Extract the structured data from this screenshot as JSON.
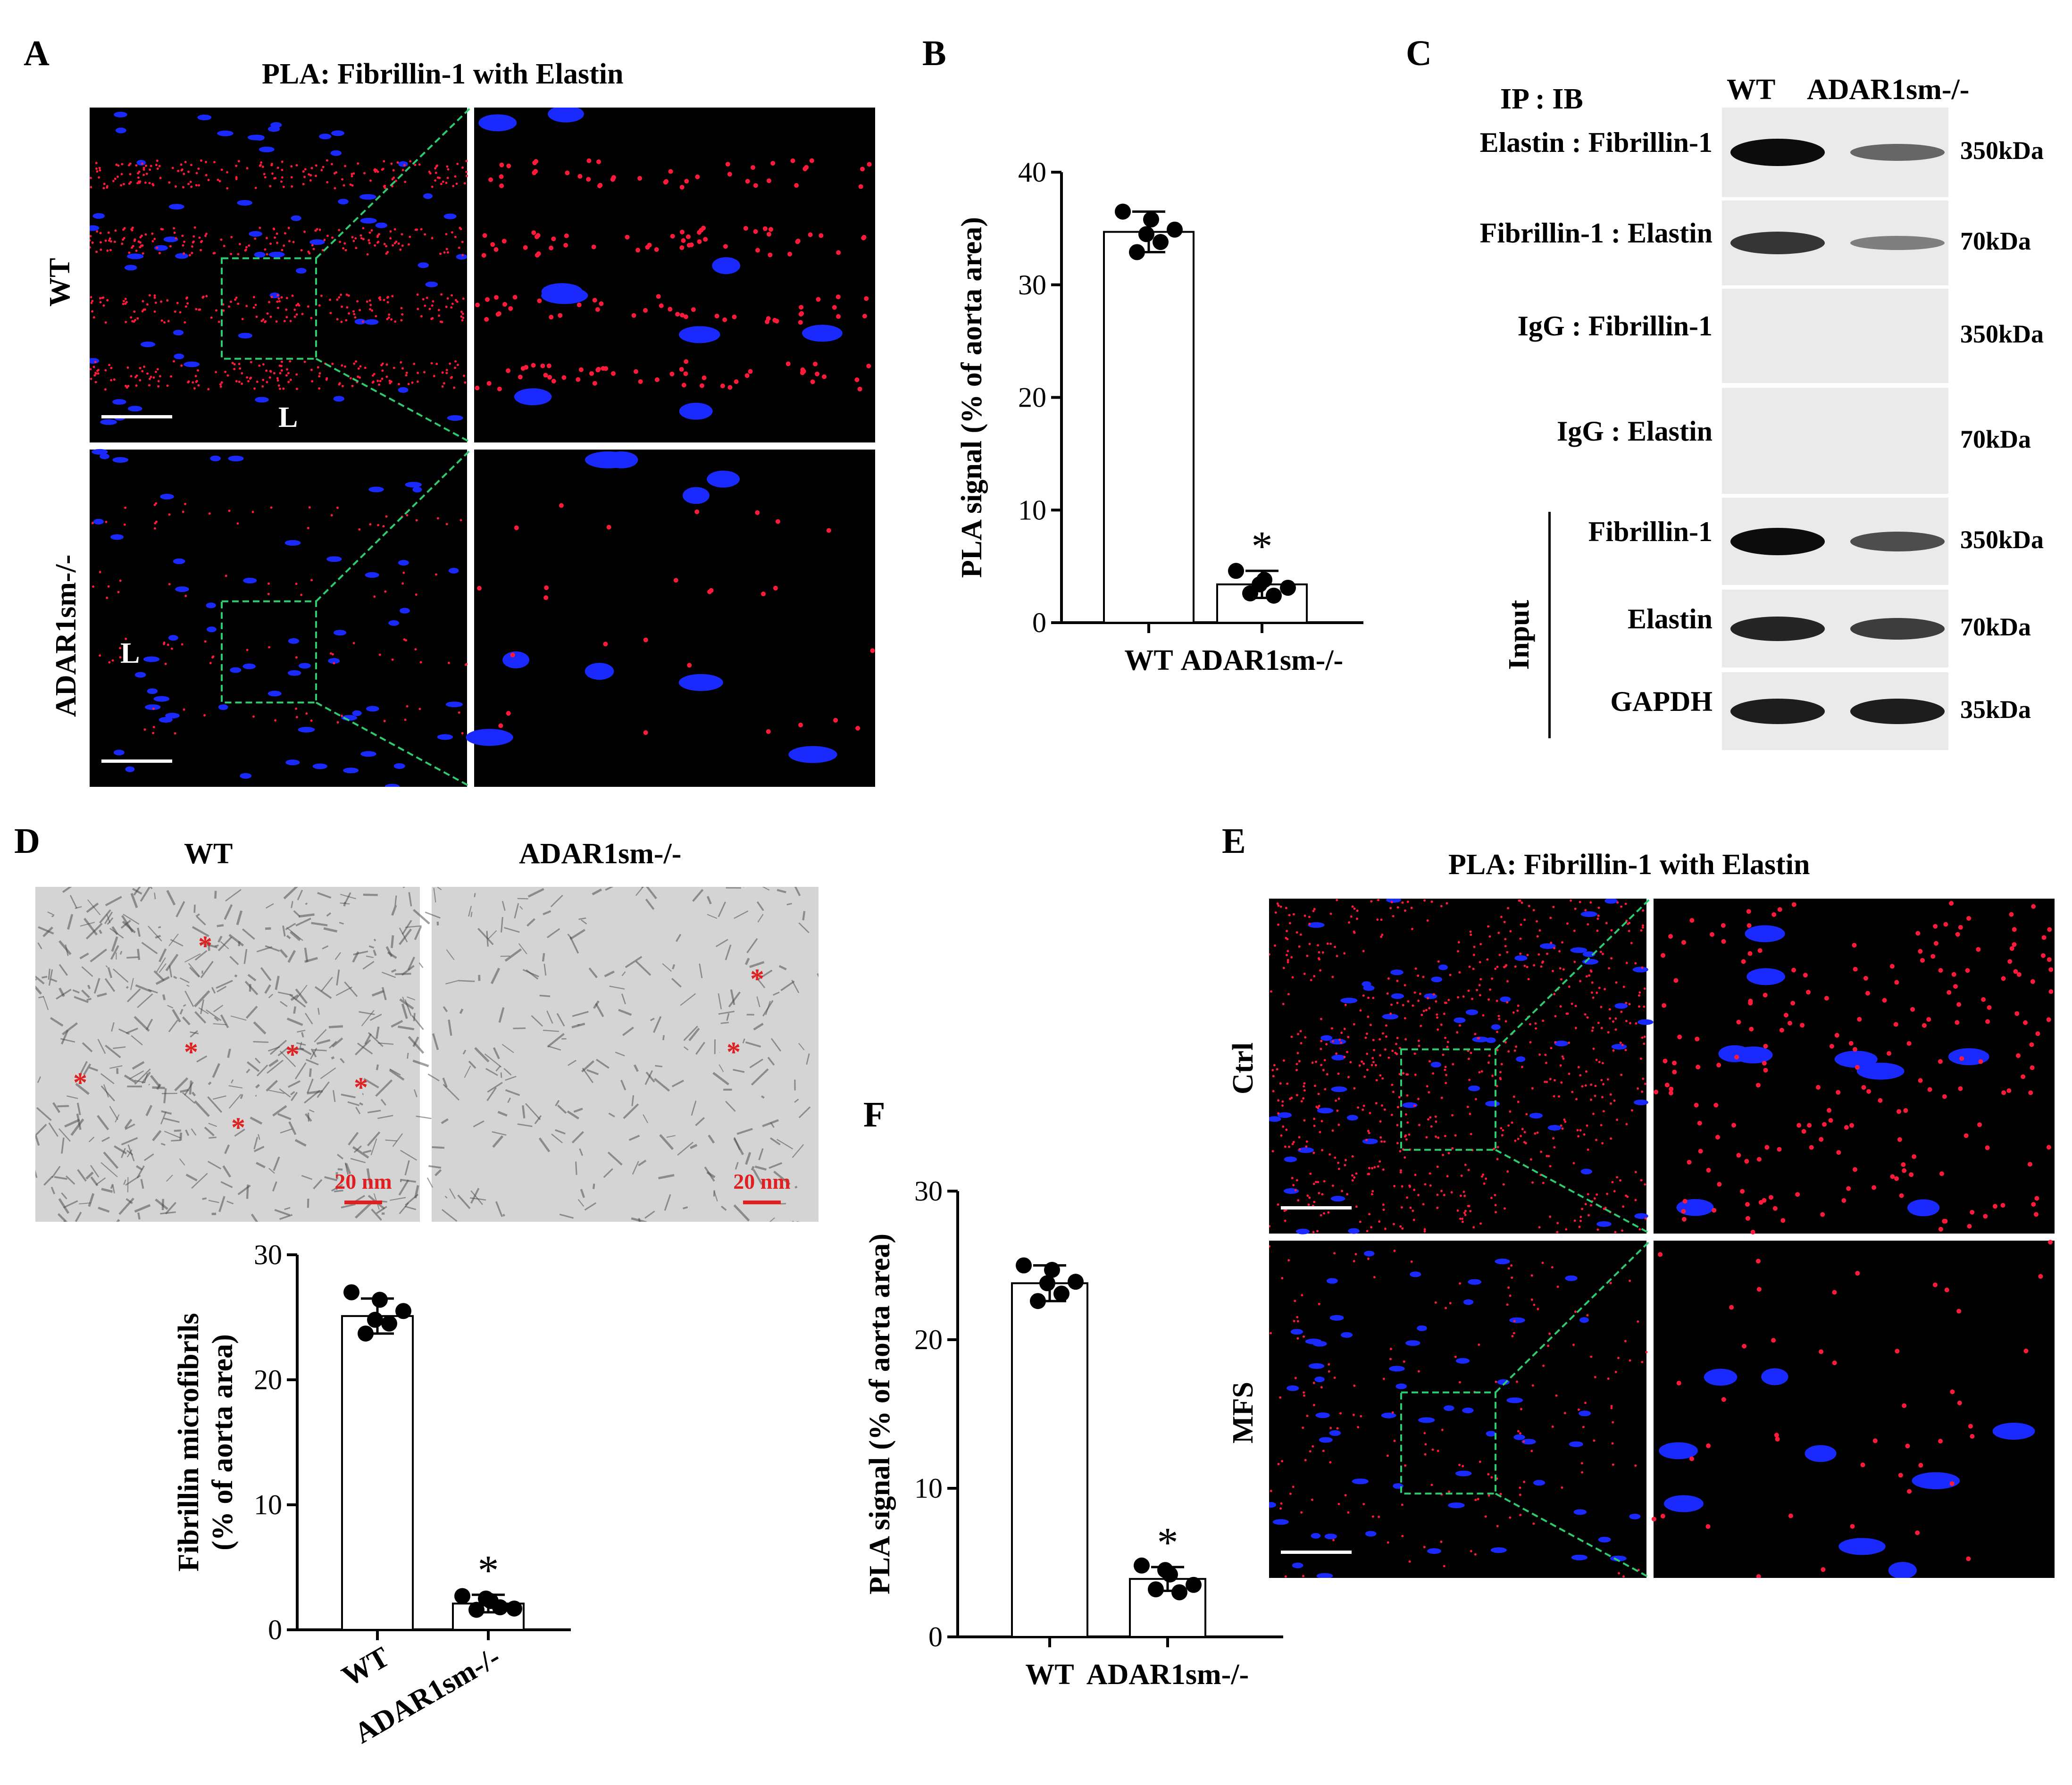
{
  "panelA": {
    "letter": "A",
    "title": "PLA: Fibrillin-1 with Elastin",
    "rows": [
      "WT",
      "ADAR1sm-/-"
    ],
    "lumen": "L",
    "colors": {
      "signal": "#ff1a3c",
      "nuclei": "#1a2aff",
      "bg": "#000000",
      "inset": "#2ecc71"
    }
  },
  "panelB": {
    "letter": "B",
    "chart_data": {
      "type": "bar",
      "categories": [
        "WT",
        "ADAR1sm-/-"
      ],
      "values": [
        34.7,
        3.4
      ],
      "errors": [
        1.8,
        1.2
      ],
      "points": [
        [
          36.5,
          35.8,
          34.9,
          33.8,
          32.9,
          34.5
        ],
        [
          4.6,
          3.8,
          3.1,
          2.4,
          2.6,
          3.4
        ]
      ],
      "ylabel": "PLA signal (% of aorta area)",
      "ylim": [
        0,
        40
      ],
      "yticks": [
        0,
        10,
        20,
        30,
        40
      ],
      "significance": [
        "",
        "*"
      ]
    }
  },
  "panelC": {
    "letter": "C",
    "header": "IP : IB",
    "lanes": [
      "WT",
      "ADAR1sm-/-"
    ],
    "input_label": "Input",
    "blots": [
      {
        "label": "Elastin : Fibrillin-1",
        "kda": "350kDa",
        "wt": 1.0,
        "ko": 0.45
      },
      {
        "label": "Fibrillin-1 : Elastin",
        "kda": "70kDa",
        "wt": 0.75,
        "ko": 0.3
      },
      {
        "label": "IgG : Fibrillin-1",
        "kda": "350kDa",
        "wt": 0,
        "ko": 0
      },
      {
        "label": "IgG : Elastin",
        "kda": "70kDa",
        "wt": 0,
        "ko": 0
      },
      {
        "label": "Fibrillin-1",
        "kda": "350kDa",
        "wt": 1.0,
        "ko": 0.6
      },
      {
        "label": "Elastin",
        "kda": "70kDa",
        "wt": 0.85,
        "ko": 0.7
      },
      {
        "label": "GAPDH",
        "kda": "35kDa",
        "wt": 0.9,
        "ko": 0.9
      }
    ]
  },
  "panelD": {
    "letter": "D",
    "groups": [
      "WT",
      "ADAR1sm-/-"
    ],
    "scale": "20 nm",
    "marker": "*",
    "chart_data": {
      "type": "bar",
      "categories": [
        "WT",
        "ADAR1sm-/-"
      ],
      "values": [
        25.1,
        2.1
      ],
      "errors": [
        1.4,
        0.7
      ],
      "points": [
        [
          27.0,
          26.4,
          25.5,
          24.5,
          23.7,
          24.8
        ],
        [
          2.7,
          2.3,
          1.7,
          1.8,
          1.6,
          2.5
        ]
      ],
      "ylabel": [
        "Fibrillin microfibrils",
        "(% of aorta area)"
      ],
      "ylim": [
        0,
        30
      ],
      "yticks": [
        0,
        10,
        20,
        30
      ],
      "significance": [
        "",
        "*"
      ]
    }
  },
  "panelE": {
    "letter": "E",
    "title": "PLA: Fibrillin-1 with Elastin",
    "rows": [
      "Ctrl",
      "MFS"
    ]
  },
  "panelF": {
    "letter": "F",
    "chart_data": {
      "type": "bar",
      "categories": [
        "WT",
        "ADAR1sm-/-"
      ],
      "values": [
        23.8,
        3.9
      ],
      "errors": [
        1.2,
        0.8
      ],
      "points": [
        [
          25.0,
          24.7,
          23.9,
          23.1,
          22.6,
          23.8
        ],
        [
          4.8,
          4.2,
          3.5,
          3.0,
          3.2,
          4.5
        ]
      ],
      "ylabel": "PLA signal (% of aorta area)",
      "ylim": [
        0,
        30
      ],
      "yticks": [
        0,
        10,
        20,
        30
      ],
      "significance": [
        "",
        "*"
      ]
    }
  }
}
